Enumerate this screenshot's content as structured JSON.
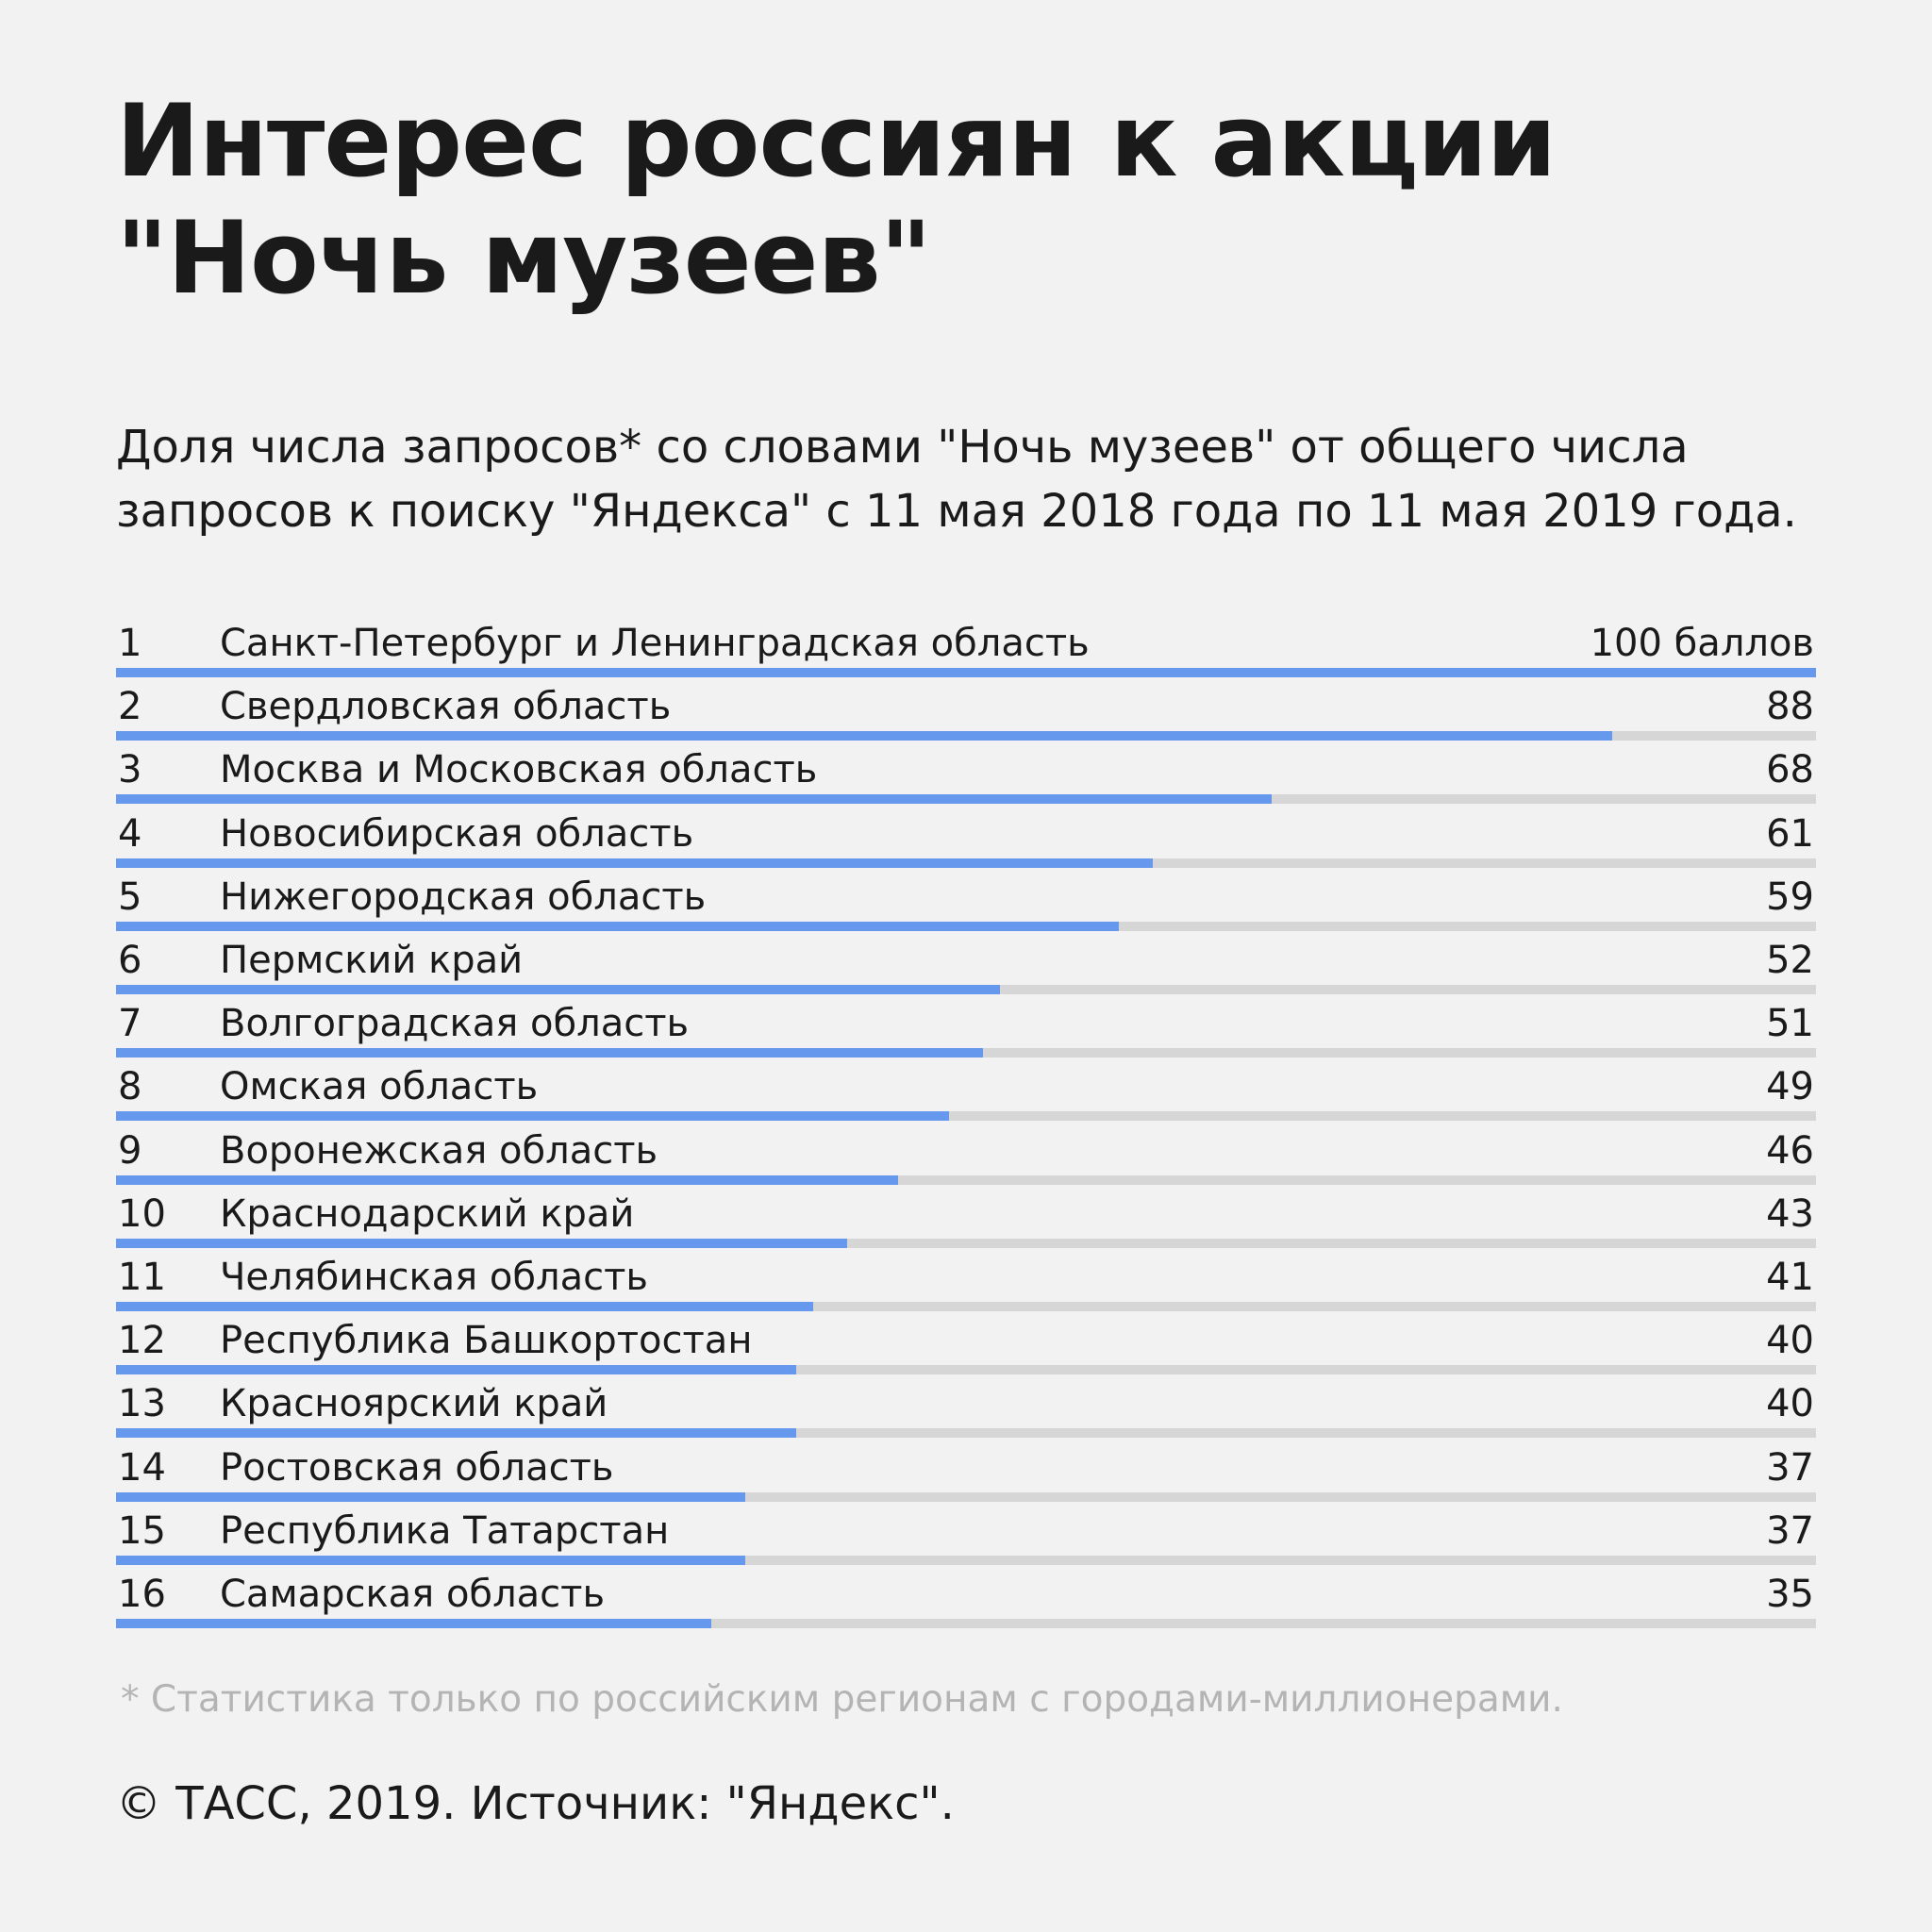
{
  "title_line1": "Интерес россиян к акции",
  "title_line2": "\"Ночь музеев\"",
  "subtitle_line1": "Доля числа запросов* со словами \"Ночь музеев\" от общего числа",
  "subtitle_line2": "запросов к поиску \"Яндекса\" с 11 мая 2018 года по 11 мая 2019 года.",
  "footnote": "* Статистика только по российским регионам с городами-миллионерами.",
  "source": "© ТАСС, 2019. Источник: \"Яндекс\".",
  "colors": {
    "bar": "#6699ee",
    "track": "#d6d6d6",
    "background": "#f2f2f2"
  },
  "chart_data": {
    "type": "bar",
    "orientation": "horizontal",
    "value_unit_first_row": "баллов",
    "xlim": [
      0,
      100
    ],
    "ranks": [
      "1",
      "2",
      "3",
      "4",
      "5",
      "6",
      "7",
      "8",
      "9",
      "10",
      "11",
      "12",
      "13",
      "14",
      "15",
      "16"
    ],
    "categories": [
      "Санкт-Петербург и Ленинградская область",
      "Свердловская область",
      "Москва и Московская область",
      "Новосибирская область",
      "Нижегородская область",
      "Пермский край",
      "Волгоградская область",
      "Омская область",
      "Воронежская область",
      "Краснодарский край",
      "Челябинская область",
      "Республика Башкортостан",
      "Красноярский край",
      "Ростовская область",
      "Республика Татарстан",
      "Самарская область"
    ],
    "values": [
      100,
      88,
      68,
      61,
      59,
      52,
      51,
      49,
      46,
      43,
      41,
      40,
      40,
      37,
      37,
      35
    ],
    "value_labels": [
      "100 баллов",
      "88",
      "68",
      "61",
      "59",
      "52",
      "51",
      "49",
      "46",
      "43",
      "41",
      "40",
      "40",
      "37",
      "37",
      "35"
    ]
  }
}
